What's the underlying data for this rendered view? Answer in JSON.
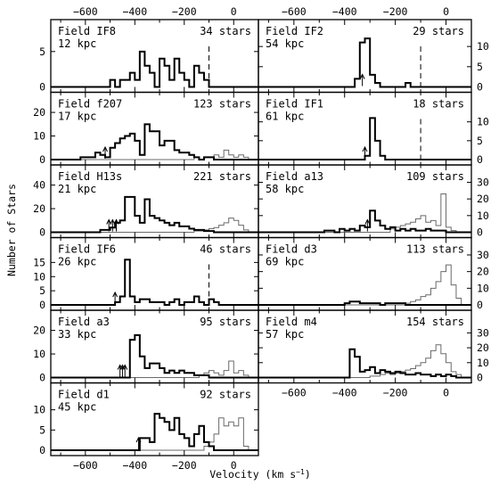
{
  "figure": {
    "ylabel": "Number of Stars",
    "xlabel": "Velocity (km s",
    "xlabel_sup": "−1",
    "xlabel_close": ")",
    "x_tick_labels": [
      "−600",
      "−400",
      "−200",
      "0"
    ]
  },
  "chart_data": [
    {
      "type": "histogram",
      "column": "left",
      "row": 0,
      "field": "Field IF8",
      "distance": "12 kpc",
      "stars": "34 stars",
      "xlim": [
        -740,
        100
      ],
      "ylim": [
        0,
        8
      ],
      "y_ticks": [
        0,
        5
      ],
      "y_tick_labels": [
        "0",
        "5"
      ],
      "bin_edges": [
        -740,
        100
      ],
      "bin_width": 20,
      "vline": -100,
      "arrows": [],
      "counts": [
        0,
        0,
        0,
        0,
        0,
        0,
        0,
        0,
        0,
        0,
        0,
        0,
        1,
        0,
        1,
        1,
        2,
        1,
        5,
        3,
        2,
        0,
        4,
        3,
        1,
        4,
        2,
        1,
        0,
        3,
        2,
        1,
        0,
        0,
        0,
        0,
        0,
        0,
        0,
        0,
        0,
        0
      ],
      "counts_light": []
    },
    {
      "type": "histogram",
      "column": "left",
      "row": 1,
      "field": "Field f207",
      "distance": "17 kpc",
      "stars": "123 stars",
      "xlim": [
        -740,
        100
      ],
      "ylim": [
        0,
        24
      ],
      "y_ticks": [
        0,
        10,
        20
      ],
      "y_tick_labels": [
        "0",
        "10",
        "20"
      ],
      "bin_width": 20,
      "arrows": [
        -520
      ],
      "counts": [
        0,
        0,
        0,
        0,
        0,
        0,
        1,
        1,
        1,
        3,
        2,
        1,
        5,
        7,
        9,
        10,
        11,
        8,
        2,
        15,
        12,
        12,
        6,
        8,
        8,
        4,
        3,
        3,
        2,
        1,
        0,
        1,
        1,
        0,
        0,
        0,
        0,
        0,
        0,
        0,
        0,
        0
      ],
      "counts_light": [
        0,
        0,
        0,
        0,
        0,
        0,
        0,
        0,
        0,
        0,
        0,
        0,
        0,
        0,
        0,
        0,
        0,
        0,
        0,
        0,
        0,
        0,
        0,
        0,
        0,
        0,
        0,
        0,
        0,
        1,
        0,
        1,
        1,
        2,
        1,
        4,
        2,
        1,
        2,
        1,
        0,
        0
      ]
    },
    {
      "type": "histogram",
      "column": "left",
      "row": 2,
      "field": "Field H13s",
      "distance": "21 kpc",
      "stars": "221 stars",
      "xlim": [
        -740,
        100
      ],
      "ylim": [
        0,
        48
      ],
      "y_ticks": [
        0,
        20,
        40
      ],
      "y_tick_labels": [
        "0",
        "20",
        "40"
      ],
      "bin_width": 20,
      "arrows": [
        -505,
        -490,
        -475
      ],
      "counts": [
        0,
        0,
        0,
        0,
        0,
        0,
        0,
        0,
        0,
        0,
        2,
        2,
        4,
        8,
        10,
        30,
        30,
        14,
        8,
        28,
        14,
        12,
        10,
        8,
        6,
        8,
        5,
        5,
        3,
        2,
        2,
        1,
        1,
        0,
        0,
        0,
        0,
        0,
        0,
        0,
        0,
        0
      ],
      "counts_light": [
        0,
        0,
        0,
        0,
        0,
        0,
        0,
        0,
        0,
        0,
        0,
        0,
        0,
        0,
        0,
        0,
        0,
        0,
        0,
        0,
        0,
        0,
        0,
        0,
        0,
        0,
        0,
        0,
        0,
        1,
        1,
        2,
        3,
        4,
        6,
        8,
        12,
        10,
        6,
        2,
        0,
        0
      ]
    },
    {
      "type": "histogram",
      "column": "left",
      "row": 3,
      "field": "Field IF6",
      "distance": "26 kpc",
      "stars": "46 stars",
      "xlim": [
        -740,
        100
      ],
      "ylim": [
        0,
        20
      ],
      "y_ticks": [
        0,
        5,
        10,
        15
      ],
      "y_tick_labels": [
        "0",
        "5",
        "10",
        "15"
      ],
      "bin_width": 20,
      "vline": -100,
      "arrows": [
        -480
      ],
      "counts": [
        0,
        0,
        0,
        0,
        0,
        0,
        0,
        0,
        0,
        0,
        0,
        0,
        0,
        1,
        3,
        16,
        3,
        1,
        2,
        2,
        1,
        1,
        1,
        0,
        1,
        2,
        0,
        1,
        1,
        3,
        1,
        0,
        2,
        1,
        0,
        0,
        0,
        0,
        0,
        0,
        0,
        0
      ],
      "counts_light": []
    },
    {
      "type": "histogram",
      "column": "left",
      "row": 4,
      "field": "Field a3",
      "distance": "33 kpc",
      "stars": "95 stars",
      "xlim": [
        -740,
        100
      ],
      "ylim": [
        0,
        24
      ],
      "y_ticks": [
        0,
        10,
        20
      ],
      "y_tick_labels": [
        "0",
        "10",
        "20"
      ],
      "bin_width": 20,
      "arrows": [
        -460,
        -450,
        -440
      ],
      "counts": [
        0,
        0,
        0,
        0,
        0,
        0,
        0,
        0,
        0,
        0,
        0,
        0,
        0,
        0,
        0,
        0,
        16,
        18,
        9,
        4,
        6,
        6,
        4,
        2,
        3,
        2,
        3,
        2,
        2,
        1,
        1,
        1,
        0,
        0,
        0,
        0,
        0,
        0,
        0,
        0,
        0,
        0
      ],
      "counts_light": [
        0,
        0,
        0,
        0,
        0,
        0,
        0,
        0,
        0,
        0,
        0,
        0,
        0,
        0,
        0,
        0,
        0,
        0,
        0,
        0,
        0,
        0,
        0,
        0,
        0,
        0,
        0,
        0,
        0,
        0,
        1,
        2,
        3,
        2,
        1,
        3,
        7,
        2,
        3,
        1,
        0,
        0
      ]
    },
    {
      "type": "histogram",
      "column": "left",
      "row": 5,
      "field": "Field d1",
      "distance": "45 kpc",
      "stars": "92 stars",
      "xlim": [
        -740,
        100
      ],
      "ylim": [
        0,
        14
      ],
      "y_ticks": [
        0,
        5,
        10
      ],
      "y_tick_labels": [
        "0",
        "5",
        "10"
      ],
      "bin_width": 20,
      "arrows": [
        -385
      ],
      "counts": [
        0,
        0,
        0,
        0,
        0,
        0,
        0,
        0,
        0,
        0,
        0,
        0,
        0,
        0,
        0,
        0,
        0,
        0,
        3,
        3,
        2,
        9,
        8,
        7,
        5,
        8,
        4,
        3,
        1,
        4,
        6,
        2,
        1,
        0,
        0,
        0,
        0,
        0,
        0,
        0,
        0,
        0
      ],
      "counts_light": [
        0,
        0,
        0,
        0,
        0,
        0,
        0,
        0,
        0,
        0,
        0,
        0,
        0,
        0,
        0,
        0,
        0,
        0,
        0,
        0,
        0,
        0,
        0,
        0,
        0,
        0,
        0,
        0,
        0,
        0,
        0,
        1,
        2,
        4,
        8,
        6,
        7,
        6,
        8,
        1,
        0,
        0
      ]
    },
    {
      "type": "histogram",
      "column": "right",
      "row": 0,
      "field": "Field IF2",
      "distance": "54 kpc",
      "stars": "29 stars",
      "xlim": [
        -740,
        100
      ],
      "ylim": [
        0,
        14
      ],
      "y_ticks": [
        0,
        5,
        10
      ],
      "y_tick_labels": [
        "0",
        "5",
        "10"
      ],
      "bin_width": 20,
      "vline": -100,
      "arrows": [
        -330
      ],
      "counts": [
        0,
        0,
        0,
        0,
        0,
        0,
        0,
        0,
        0,
        0,
        0,
        0,
        0,
        0,
        0,
        0,
        0,
        0,
        0,
        2,
        11,
        12,
        3,
        1,
        0,
        0,
        0,
        0,
        0,
        1,
        0,
        0,
        0,
        0,
        0,
        0,
        0,
        0,
        0,
        0,
        0,
        0
      ],
      "counts_light": []
    },
    {
      "type": "histogram",
      "column": "right",
      "row": 1,
      "field": "Field IF1",
      "distance": "61 kpc",
      "stars": "18 stars",
      "xlim": [
        -740,
        100
      ],
      "ylim": [
        0,
        15
      ],
      "y_ticks": [
        0,
        5,
        10
      ],
      "y_tick_labels": [
        "0",
        "5",
        "10"
      ],
      "bin_width": 20,
      "vline": -100,
      "arrows": [
        -320
      ],
      "counts": [
        0,
        0,
        0,
        0,
        0,
        0,
        0,
        0,
        0,
        0,
        0,
        0,
        0,
        0,
        0,
        0,
        0,
        0,
        0,
        0,
        0,
        1,
        11,
        5,
        1,
        0,
        0,
        0,
        0,
        0,
        0,
        0,
        0,
        0,
        0,
        0,
        0,
        0,
        0,
        0,
        0,
        0
      ],
      "counts_light": []
    },
    {
      "type": "histogram",
      "column": "right",
      "row": 2,
      "field": "Field a13",
      "distance": "58 kpc",
      "stars": "109 stars",
      "xlim": [
        -740,
        100
      ],
      "ylim": [
        0,
        34
      ],
      "y_ticks": [
        0,
        10,
        20,
        30
      ],
      "y_tick_labels": [
        "0",
        "10",
        "20",
        "30"
      ],
      "bin_width": 20,
      "arrows": [
        -310
      ],
      "counts": [
        0,
        0,
        0,
        0,
        0,
        0,
        0,
        0,
        0,
        0,
        0,
        0,
        0,
        1,
        1,
        0,
        2,
        1,
        2,
        1,
        4,
        3,
        13,
        7,
        4,
        2,
        3,
        1,
        2,
        1,
        2,
        1,
        1,
        2,
        1,
        1,
        1,
        0,
        0,
        0,
        0,
        0
      ],
      "counts_light": [
        0,
        0,
        0,
        0,
        0,
        0,
        0,
        0,
        0,
        0,
        0,
        0,
        0,
        0,
        0,
        0,
        0,
        0,
        0,
        0,
        0,
        0,
        0,
        0,
        0,
        0,
        2,
        3,
        4,
        5,
        6,
        8,
        10,
        6,
        7,
        4,
        23,
        3,
        1,
        0,
        0,
        0
      ]
    },
    {
      "type": "histogram",
      "column": "right",
      "row": 3,
      "field": "Field d3",
      "distance": "69 kpc",
      "stars": "113 stars",
      "xlim": [
        -740,
        100
      ],
      "ylim": [
        0,
        34
      ],
      "y_ticks": [
        0,
        10,
        20,
        30
      ],
      "y_tick_labels": [
        "0",
        "10",
        "20",
        "30"
      ],
      "bin_width": 20,
      "arrows": [],
      "counts": [
        0,
        0,
        0,
        0,
        0,
        0,
        0,
        0,
        0,
        0,
        0,
        0,
        0,
        0,
        0,
        0,
        0,
        1,
        2,
        2,
        1,
        1,
        1,
        1,
        0,
        1,
        1,
        1,
        1,
        0,
        0,
        0,
        0,
        0,
        0,
        0,
        0,
        0,
        0,
        0,
        0,
        0
      ],
      "counts_light": [
        0,
        0,
        0,
        0,
        0,
        0,
        0,
        0,
        0,
        0,
        0,
        0,
        0,
        0,
        0,
        0,
        0,
        0,
        0,
        0,
        0,
        0,
        0,
        0,
        0,
        0,
        0,
        0,
        0,
        1,
        2,
        3,
        5,
        6,
        10,
        14,
        20,
        24,
        12,
        4,
        0,
        0
      ]
    },
    {
      "type": "histogram",
      "column": "right",
      "row": 4,
      "field": "Field m4",
      "distance": "57 kpc",
      "stars": "154 stars",
      "xlim": [
        -740,
        100
      ],
      "ylim": [
        0,
        38
      ],
      "y_ticks": [
        0,
        10,
        20,
        30
      ],
      "y_tick_labels": [
        "0",
        "10",
        "20",
        "30"
      ],
      "bin_width": 20,
      "arrows": [],
      "counts": [
        0,
        0,
        0,
        0,
        0,
        0,
        0,
        0,
        0,
        0,
        0,
        0,
        0,
        0,
        0,
        0,
        0,
        0,
        19,
        14,
        4,
        5,
        7,
        3,
        5,
        4,
        3,
        4,
        3,
        2,
        2,
        3,
        2,
        2,
        1,
        2,
        1,
        2,
        1,
        0,
        0,
        0
      ],
      "counts_light": [
        0,
        0,
        0,
        0,
        0,
        0,
        0,
        0,
        0,
        0,
        0,
        0,
        0,
        0,
        0,
        0,
        0,
        0,
        0,
        0,
        0,
        0,
        1,
        1,
        2,
        3,
        2,
        3,
        4,
        5,
        6,
        8,
        10,
        13,
        18,
        22,
        16,
        10,
        4,
        2,
        0,
        0
      ]
    }
  ]
}
